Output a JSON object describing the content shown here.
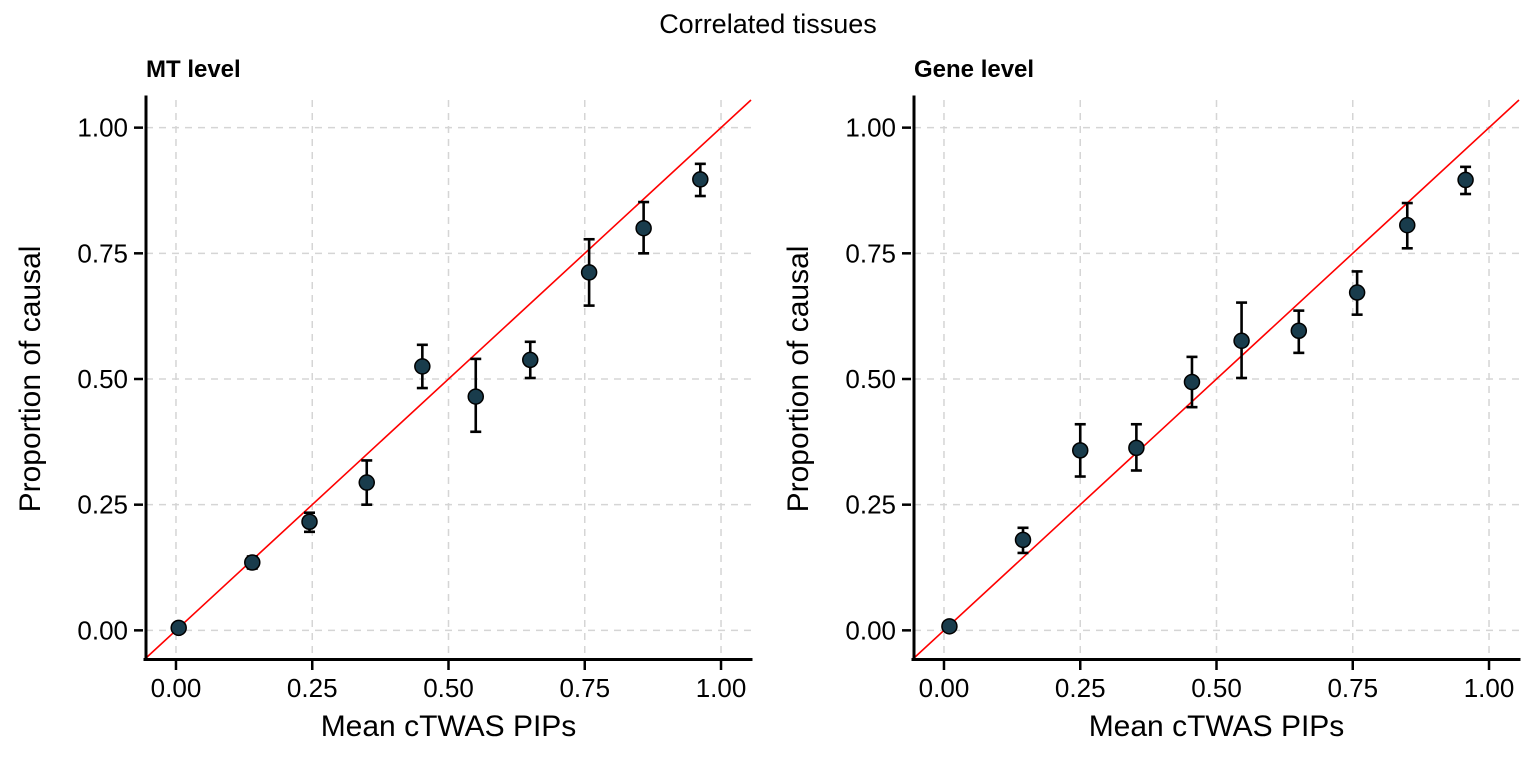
{
  "figure": {
    "title": "Correlated tissues"
  },
  "colors": {
    "point_fill": "#193c4c",
    "point_stroke": "#000000",
    "error_bar": "#000000",
    "reference_line": "#ff0000",
    "grid": "#d5d5d5",
    "axis": "#000000",
    "text": "#000000",
    "background": "#ffffff"
  },
  "chart_data": [
    {
      "type": "scatter",
      "title": "MT level",
      "xlabel": "Mean cTWAS PIPs",
      "ylabel": "Proportion of causal",
      "xlim": [
        -0.055,
        1.055
      ],
      "ylim": [
        -0.055,
        1.055
      ],
      "xticks": [
        0,
        0.25,
        0.5,
        0.75,
        1
      ],
      "yticks": [
        0,
        0.25,
        0.5,
        0.75,
        1
      ],
      "xtick_labels": [
        "0.00",
        "0.25",
        "0.50",
        "0.75",
        "1.00"
      ],
      "ytick_labels": [
        "0.00",
        "0.25",
        "0.50",
        "0.75",
        "1.00"
      ],
      "grid": "dashed",
      "legend": "none",
      "reference_line": "y=x",
      "points": [
        {
          "x": 0.005,
          "y": 0.005,
          "ylo": 0.0,
          "yhi": 0.01
        },
        {
          "x": 0.14,
          "y": 0.135,
          "ylo": 0.123,
          "yhi": 0.147
        },
        {
          "x": 0.245,
          "y": 0.216,
          "ylo": 0.196,
          "yhi": 0.234
        },
        {
          "x": 0.35,
          "y": 0.294,
          "ylo": 0.25,
          "yhi": 0.338
        },
        {
          "x": 0.452,
          "y": 0.525,
          "ylo": 0.482,
          "yhi": 0.568
        },
        {
          "x": 0.55,
          "y": 0.465,
          "ylo": 0.395,
          "yhi": 0.54
        },
        {
          "x": 0.65,
          "y": 0.538,
          "ylo": 0.502,
          "yhi": 0.574
        },
        {
          "x": 0.758,
          "y": 0.712,
          "ylo": 0.646,
          "yhi": 0.778
        },
        {
          "x": 0.858,
          "y": 0.8,
          "ylo": 0.75,
          "yhi": 0.852
        },
        {
          "x": 0.962,
          "y": 0.897,
          "ylo": 0.864,
          "yhi": 0.928
        }
      ]
    },
    {
      "type": "scatter",
      "title": "Gene level",
      "xlabel": "Mean cTWAS PIPs",
      "ylabel": "Proportion of causal",
      "xlim": [
        -0.055,
        1.055
      ],
      "ylim": [
        -0.055,
        1.055
      ],
      "xticks": [
        0,
        0.25,
        0.5,
        0.75,
        1
      ],
      "yticks": [
        0,
        0.25,
        0.5,
        0.75,
        1
      ],
      "xtick_labels": [
        "0.00",
        "0.25",
        "0.50",
        "0.75",
        "1.00"
      ],
      "ytick_labels": [
        "0.00",
        "0.25",
        "0.50",
        "0.75",
        "1.00"
      ],
      "grid": "dashed",
      "legend": "none",
      "reference_line": "y=x",
      "points": [
        {
          "x": 0.01,
          "y": 0.008,
          "ylo": 0.003,
          "yhi": 0.013
        },
        {
          "x": 0.145,
          "y": 0.18,
          "ylo": 0.154,
          "yhi": 0.204
        },
        {
          "x": 0.25,
          "y": 0.358,
          "ylo": 0.306,
          "yhi": 0.41
        },
        {
          "x": 0.353,
          "y": 0.363,
          "ylo": 0.318,
          "yhi": 0.41
        },
        {
          "x": 0.455,
          "y": 0.494,
          "ylo": 0.444,
          "yhi": 0.544
        },
        {
          "x": 0.546,
          "y": 0.576,
          "ylo": 0.502,
          "yhi": 0.652
        },
        {
          "x": 0.651,
          "y": 0.596,
          "ylo": 0.552,
          "yhi": 0.636
        },
        {
          "x": 0.758,
          "y": 0.672,
          "ylo": 0.628,
          "yhi": 0.714
        },
        {
          "x": 0.85,
          "y": 0.806,
          "ylo": 0.76,
          "yhi": 0.85
        },
        {
          "x": 0.957,
          "y": 0.896,
          "ylo": 0.868,
          "yhi": 0.922
        }
      ]
    }
  ]
}
